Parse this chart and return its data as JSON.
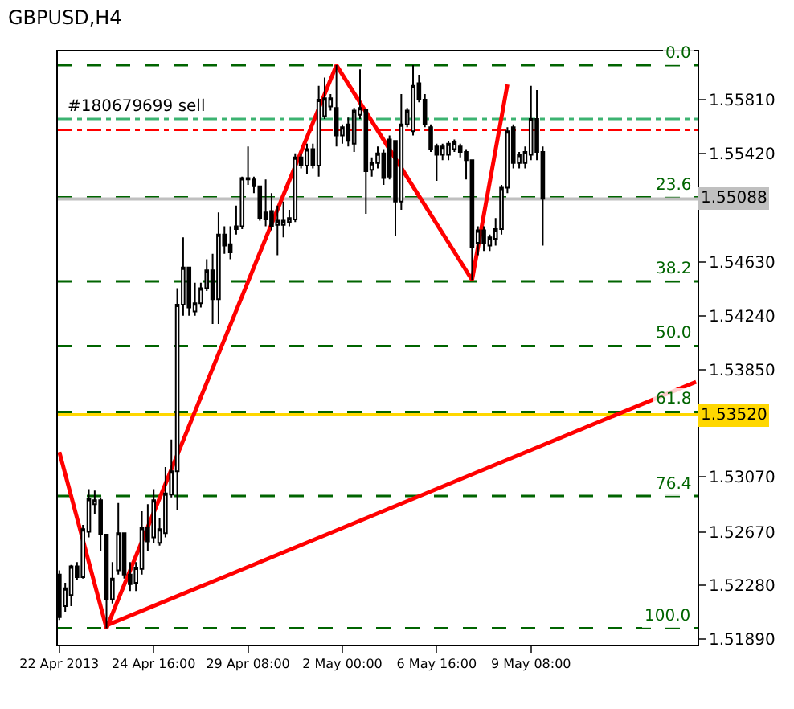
{
  "chart_data": {
    "type": "candlestick",
    "title": "GBPUSD,H4",
    "categories": [
      "22 Apr 2013",
      null,
      null,
      null,
      null,
      null,
      null,
      null,
      null,
      null,
      null,
      null,
      null,
      null,
      null,
      null,
      "24 Apr 16:00",
      null,
      null,
      null,
      null,
      null,
      null,
      null,
      null,
      null,
      null,
      null,
      null,
      null,
      null,
      null,
      "29 Apr 08:00",
      null,
      null,
      null,
      null,
      null,
      null,
      null,
      null,
      null,
      null,
      null,
      null,
      null,
      null,
      null,
      "2 May 00:00",
      null,
      null,
      null,
      null,
      null,
      null,
      null,
      null,
      null,
      null,
      null,
      null,
      null,
      null,
      null,
      "6 May 16:00",
      null,
      null,
      null,
      null,
      null,
      null,
      null,
      null,
      null,
      null,
      null,
      null,
      null,
      null,
      null,
      "9 May 08:00",
      null,
      null,
      null,
      null,
      null,
      null,
      null,
      null,
      null,
      null,
      null,
      null,
      null,
      null,
      null,
      null,
      null,
      null,
      null,
      null,
      null,
      null,
      null,
      null,
      null,
      null,
      null,
      null
    ],
    "ohlc": [
      [
        1.5236,
        1.5239,
        1.5203,
        1.5205
      ],
      [
        1.5213,
        1.523,
        1.5209,
        1.5226
      ],
      [
        1.5221,
        1.5243,
        1.5213,
        1.5242
      ],
      [
        1.5242,
        1.5245,
        1.5232,
        1.5234
      ],
      [
        1.5234,
        1.5272,
        1.5233,
        1.5269
      ],
      [
        1.5267,
        1.5298,
        1.5263,
        1.5291
      ],
      [
        1.5287,
        1.5297,
        1.528,
        1.529
      ],
      [
        1.529,
        1.5292,
        1.5253,
        1.5265
      ],
      [
        1.5265,
        1.5265,
        1.5197,
        1.5218
      ],
      [
        1.5218,
        1.5245,
        1.5215,
        1.5233
      ],
      [
        1.5239,
        1.5288,
        1.5236,
        1.5266
      ],
      [
        1.5266,
        1.5266,
        1.5233,
        1.5236
      ],
      [
        1.5236,
        1.5245,
        1.5224,
        1.5229
      ],
      [
        1.523,
        1.5245,
        1.5224,
        1.5241
      ],
      [
        1.524,
        1.5282,
        1.5236,
        1.527
      ],
      [
        1.527,
        1.5287,
        1.5253,
        1.526
      ],
      [
        1.5263,
        1.5298,
        1.5259,
        1.529
      ],
      [
        1.5259,
        1.5277,
        1.5257,
        1.5269
      ],
      [
        1.5266,
        1.5314,
        1.5263,
        1.5295
      ],
      [
        1.5294,
        1.5334,
        1.5292,
        1.5311
      ],
      [
        1.5311,
        1.5444,
        1.5283,
        1.5432
      ],
      [
        1.5432,
        1.5481,
        1.5424,
        1.5459
      ],
      [
        1.5459,
        1.5459,
        1.5424,
        1.543
      ],
      [
        1.5427,
        1.5448,
        1.5424,
        1.5433
      ],
      [
        1.5433,
        1.5448,
        1.543,
        1.5444
      ],
      [
        1.5444,
        1.5465,
        1.5442,
        1.5457
      ],
      [
        1.5457,
        1.5469,
        1.5418,
        1.5436
      ],
      [
        1.5436,
        1.5499,
        1.5418,
        1.5483
      ],
      [
        1.5483,
        1.5489,
        1.5469,
        1.5475
      ],
      [
        1.5476,
        1.5489,
        1.5465,
        1.547
      ],
      [
        1.5487,
        1.5504,
        1.5483,
        1.5489
      ],
      [
        1.5489,
        1.5525,
        1.5487,
        1.5524
      ],
      [
        1.5523,
        1.5547,
        1.5519,
        1.5524
      ],
      [
        1.5523,
        1.5525,
        1.5513,
        1.5518
      ],
      [
        1.5518,
        1.5518,
        1.5493,
        1.5495
      ],
      [
        1.5499,
        1.5523,
        1.5489,
        1.5494
      ],
      [
        1.55,
        1.5513,
        1.5486,
        1.5489
      ],
      [
        1.549,
        1.5504,
        1.5468,
        1.5493
      ],
      [
        1.549,
        1.5507,
        1.5481,
        1.5493
      ],
      [
        1.5492,
        1.5501,
        1.5489,
        1.5495
      ],
      [
        1.5494,
        1.5542,
        1.5492,
        1.5539
      ],
      [
        1.5539,
        1.5542,
        1.5531,
        1.5533
      ],
      [
        1.5533,
        1.5549,
        1.5527,
        1.5545
      ],
      [
        1.5545,
        1.5549,
        1.5531,
        1.5533
      ],
      [
        1.5533,
        1.5591,
        1.5525,
        1.5581
      ],
      [
        1.5569,
        1.5597,
        1.5567,
        1.5582
      ],
      [
        1.5576,
        1.5585,
        1.5573,
        1.5582
      ],
      [
        1.5575,
        1.5606,
        1.5547,
        1.5555
      ],
      [
        1.5555,
        1.5563,
        1.5549,
        1.5561
      ],
      [
        1.5563,
        1.5568,
        1.5547,
        1.5551
      ],
      [
        1.5549,
        1.5575,
        1.5543,
        1.5573
      ],
      [
        1.557,
        1.5603,
        1.5567,
        1.5575
      ],
      [
        1.5574,
        1.5574,
        1.5498,
        1.5529
      ],
      [
        1.553,
        1.5539,
        1.5525,
        1.5535
      ],
      [
        1.5535,
        1.5547,
        1.5531,
        1.5542
      ],
      [
        1.5542,
        1.5545,
        1.5519,
        1.5524
      ],
      [
        1.5552,
        1.5555,
        1.5523,
        1.5525
      ],
      [
        1.5551,
        1.5551,
        1.5482,
        1.5507
      ],
      [
        1.5507,
        1.5585,
        1.5501,
        1.5563
      ],
      [
        1.5563,
        1.5575,
        1.5561,
        1.5573
      ],
      [
        1.5558,
        1.5606,
        1.5555,
        1.5591
      ],
      [
        1.5593,
        1.5599,
        1.5579,
        1.5581
      ],
      [
        1.5581,
        1.5585,
        1.5561,
        1.5563
      ],
      [
        1.5561,
        1.5563,
        1.5543,
        1.5545
      ],
      [
        1.5547,
        1.5549,
        1.5522,
        1.5541
      ],
      [
        1.5541,
        1.5549,
        1.5537,
        1.5547
      ],
      [
        1.5541,
        1.5551,
        1.5537,
        1.5549
      ],
      [
        1.5545,
        1.5552,
        1.5543,
        1.555
      ],
      [
        1.5547,
        1.5549,
        1.5539,
        1.5543
      ],
      [
        1.5543,
        1.5545,
        1.5523,
        1.5537
      ],
      [
        1.5537,
        1.5537,
        1.545,
        1.5474
      ],
      [
        1.5477,
        1.5489,
        1.5468,
        1.5486
      ],
      [
        1.5486,
        1.5489,
        1.5471,
        1.5477
      ],
      [
        1.5475,
        1.5483,
        1.5471,
        1.5481
      ],
      [
        1.548,
        1.5495,
        1.5475,
        1.5487
      ],
      [
        1.5487,
        1.5519,
        1.5483,
        1.5517
      ],
      [
        1.5517,
        1.5561,
        1.5513,
        1.5558
      ],
      [
        1.5561,
        1.5563,
        1.5531,
        1.5535
      ],
      [
        1.5535,
        1.5543,
        1.5531,
        1.5541
      ],
      [
        1.5535,
        1.5547,
        1.5531,
        1.5543
      ],
      [
        1.5541,
        1.5591,
        1.5537,
        1.5567
      ],
      [
        1.5567,
        1.5588,
        1.5537,
        1.5543
      ],
      [
        1.5543,
        1.5547,
        1.5475,
        1.5509
      ],
      null,
      null,
      null,
      null,
      null,
      null,
      null,
      null,
      null,
      null,
      null,
      null,
      null,
      null,
      null,
      null,
      null,
      null,
      null,
      null,
      null,
      null,
      null,
      null,
      null,
      null
    ],
    "series": [
      {
        "type": "line",
        "color": "#ff0000",
        "values": [
          1.5325,
          null,
          null,
          null,
          null,
          null,
          null,
          null,
          1.5197,
          null,
          null,
          null,
          null,
          null,
          null,
          null,
          null,
          null,
          null,
          null,
          null,
          null,
          null,
          null,
          null,
          null,
          null,
          null,
          null,
          null,
          null,
          null,
          null,
          null,
          null,
          null,
          null,
          null,
          null,
          null,
          null,
          null,
          null,
          null,
          null,
          null,
          null,
          1.5606,
          null,
          null,
          null,
          null,
          null,
          null,
          null,
          null,
          null,
          null,
          null,
          null,
          null,
          null,
          null,
          null,
          null,
          null,
          null,
          null,
          null,
          null,
          1.545,
          null,
          null,
          null,
          null,
          null,
          1.5592,
          null,
          null,
          null,
          null,
          null,
          null,
          null,
          null,
          null,
          null,
          null,
          null,
          null,
          null,
          null,
          null,
          null,
          null,
          null,
          null,
          null,
          null,
          null,
          null,
          null,
          null,
          null,
          null,
          null,
          null,
          null,
          null
        ]
      },
      {
        "type": "line",
        "color": "#ff0000",
        "values": [
          null,
          null,
          null,
          null,
          null,
          null,
          null,
          null,
          1.5199,
          null,
          null,
          null,
          null,
          null,
          null,
          null,
          null,
          null,
          null,
          null,
          null,
          null,
          null,
          null,
          null,
          null,
          null,
          null,
          null,
          null,
          null,
          null,
          null,
          null,
          null,
          null,
          null,
          null,
          null,
          null,
          null,
          null,
          null,
          null,
          null,
          null,
          null,
          null,
          null,
          null,
          null,
          null,
          null,
          null,
          null,
          null,
          null,
          null,
          null,
          null,
          null,
          null,
          null,
          null,
          null,
          null,
          null,
          null,
          null,
          null,
          null,
          null,
          null,
          null,
          null,
          null,
          null,
          null,
          null,
          null,
          null,
          null,
          null,
          null,
          null,
          null,
          null,
          null,
          null,
          null,
          null,
          null,
          null,
          null,
          null,
          null,
          null,
          null,
          null,
          null,
          null,
          null,
          null,
          null,
          null,
          null,
          null,
          null,
          1.5376
        ]
      }
    ],
    "ylim": [
      1.5185,
      1.5616
    ],
    "yticks": [
      {
        "value": 1.5189,
        "label": "1.51890"
      },
      {
        "value": 1.5228,
        "label": "1.52280"
      },
      {
        "value": 1.5267,
        "label": "1.52670"
      },
      {
        "value": 1.5307,
        "label": "1.53070"
      },
      {
        "value": 1.5346,
        "label": null
      },
      {
        "value": 1.5385,
        "label": "1.53850"
      },
      {
        "value": 1.5424,
        "label": "1.54240"
      },
      {
        "value": 1.5463,
        "label": "1.54630"
      },
      {
        "value": 1.5542,
        "label": "1.55420"
      },
      {
        "value": 1.5581,
        "label": "1.55810"
      }
    ],
    "ref_lines": [
      {
        "axis": "y",
        "value": 1.5606,
        "color": "#006400",
        "line_style": "dashed"
      },
      {
        "axis": "y",
        "value": 1.551,
        "color": "#006400",
        "line_style": "dashed"
      },
      {
        "axis": "y",
        "value": 1.5449,
        "color": "#006400",
        "line_style": "dashed"
      },
      {
        "axis": "y",
        "value": 1.5402,
        "color": "#006400",
        "line_style": "dashed"
      },
      {
        "axis": "y",
        "value": 1.5354,
        "color": "#006400",
        "line_style": "dashed"
      },
      {
        "axis": "y",
        "value": 1.5293,
        "color": "#006400",
        "line_style": "dashed"
      },
      {
        "axis": "y",
        "value": 1.5197,
        "color": "#006400",
        "line_style": "dashed"
      },
      {
        "axis": "y",
        "value": 1.5567,
        "label": "#180679699 sell",
        "color": "#3cb371",
        "line_style": "dashdot"
      },
      {
        "axis": "y",
        "value": 1.5559,
        "color": "#ff0000",
        "line_style": "dashdot"
      },
      {
        "axis": "y",
        "value": 1.55088,
        "label": "1.55088",
        "color": "#c0c0c0",
        "line_style": "solid"
      },
      {
        "axis": "y",
        "value": 1.5352,
        "label": "1.53520",
        "color": "#ffd700",
        "line_style": "solid"
      }
    ],
    "annotations": [
      {
        "text": "0.0",
        "y": 1.5606
      },
      {
        "text": "23.6",
        "y": 1.551
      },
      {
        "text": "38.2",
        "y": 1.5449
      },
      {
        "text": "50.0",
        "y": 1.5402
      },
      {
        "text": "61.8",
        "y": 1.5354
      },
      {
        "text": "76.4",
        "y": 1.5293
      },
      {
        "text": "100.0",
        "y": 1.5197
      }
    ],
    "grid": false
  }
}
